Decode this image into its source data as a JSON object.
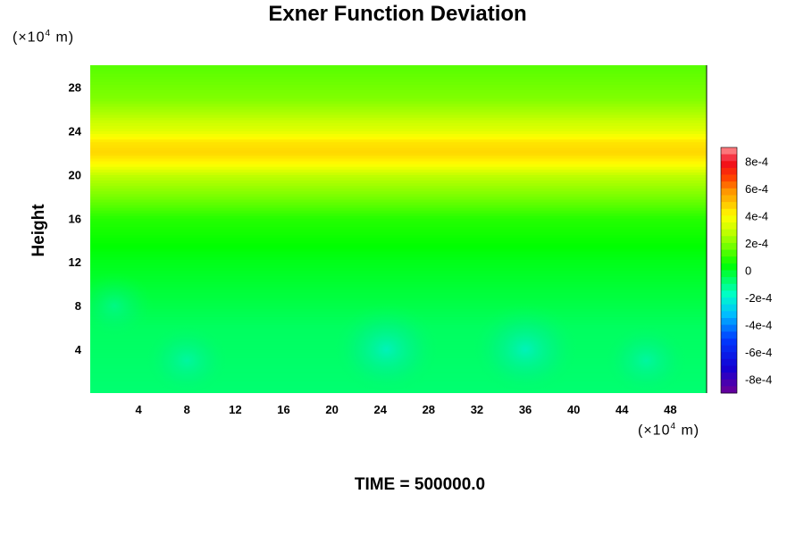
{
  "chart_data": {
    "type": "heatmap",
    "title": "Exner Function Deviation",
    "ylabel": "Height",
    "x_unit": {
      "prefix": "(×10",
      "exp": "4",
      "suffix": " m)"
    },
    "y_unit": {
      "prefix": "(×10",
      "exp": "4",
      "suffix": " m)"
    },
    "xlim": [
      0,
      51
    ],
    "ylim": [
      0,
      30
    ],
    "x_ticks": [
      4,
      8,
      12,
      16,
      20,
      24,
      28,
      32,
      36,
      40,
      44,
      48
    ],
    "y_ticks": [
      4,
      8,
      12,
      16,
      20,
      24,
      28
    ],
    "colorbar": {
      "range": [
        -0.0009,
        0.0009
      ],
      "tick_values": [
        0.0008,
        0.0006,
        0.0004,
        0.0002,
        0,
        -0.0002,
        -0.0004,
        -0.0006,
        -0.0008
      ],
      "tick_labels": [
        "8e-4",
        "6e-4",
        "4e-4",
        "2e-4",
        "0",
        "-2e-4",
        "-4e-4",
        "-6e-4",
        "-8e-4"
      ]
    },
    "vertical_profile": [
      {
        "height": 0,
        "value": -8e-05
      },
      {
        "height": 6,
        "value": -6e-05
      },
      {
        "height": 12,
        "value": 1e-05
      },
      {
        "height": 16,
        "value": 8e-05
      },
      {
        "height": 18,
        "value": 0.00018
      },
      {
        "height": 20,
        "value": 0.00028
      },
      {
        "height": 21,
        "value": 0.0004
      },
      {
        "height": 22,
        "value": 0.00046
      },
      {
        "height": 23,
        "value": 0.00044
      },
      {
        "height": 24,
        "value": 0.00034
      },
      {
        "height": 25.5,
        "value": 0.00026
      },
      {
        "height": 27,
        "value": 0.00019
      },
      {
        "height": 30,
        "value": 0.00014
      }
    ],
    "anomalies": [
      {
        "x": 24.5,
        "height": 4,
        "value": -0.00022
      },
      {
        "x": 36,
        "height": 4,
        "value": -0.00022
      },
      {
        "x": 8,
        "height": 3,
        "value": -0.00015
      },
      {
        "x": 46,
        "height": 3,
        "value": -0.00015
      },
      {
        "x": 2,
        "height": 8,
        "value": -0.00012
      }
    ]
  },
  "footer": {
    "time_label": "TIME = 500000.0"
  }
}
